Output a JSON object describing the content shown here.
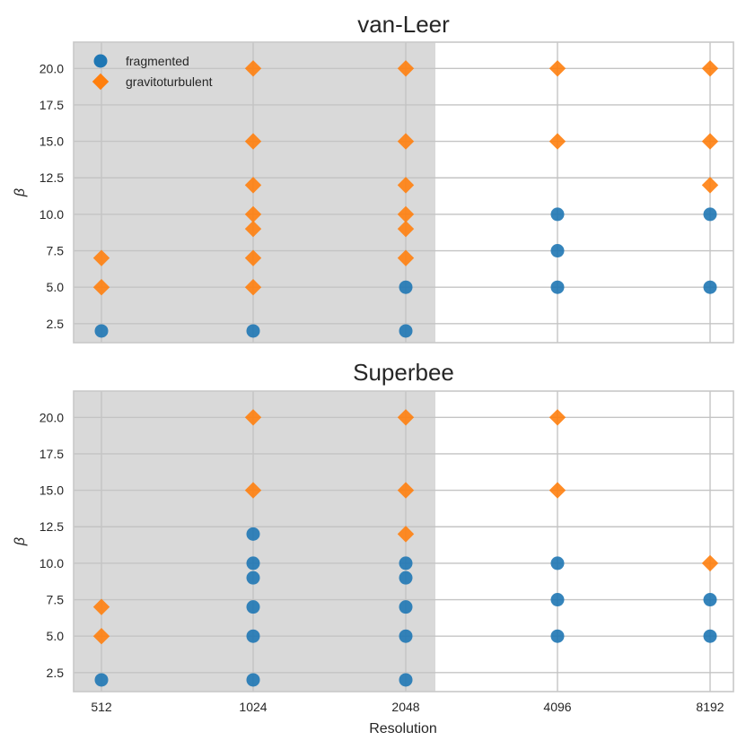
{
  "chart_data": [
    {
      "type": "scatter",
      "title": "van-Leer",
      "xlabel": "",
      "ylabel": "β",
      "x_categories": [
        "512",
        "1024",
        "2048",
        "4096",
        "8192"
      ],
      "ylim": [
        1.2,
        21.8
      ],
      "yticks": [
        "2.5",
        "5.0",
        "7.5",
        "10.0",
        "12.5",
        "15.0",
        "17.5",
        "20.0"
      ],
      "shaded_region": {
        "from_category": "512",
        "to_category_between": [
          "2048",
          "4096"
        ],
        "color": "#d9d9d9"
      },
      "series": [
        {
          "name": "fragmented",
          "color": "#1f77b4",
          "marker": "circle",
          "points": [
            {
              "x": "512",
              "y": 2.0
            },
            {
              "x": "1024",
              "y": 2.0
            },
            {
              "x": "2048",
              "y": 2.0
            },
            {
              "x": "2048",
              "y": 5.0
            },
            {
              "x": "4096",
              "y": 5.0
            },
            {
              "x": "4096",
              "y": 7.5
            },
            {
              "x": "4096",
              "y": 10.0
            },
            {
              "x": "8192",
              "y": 5.0
            },
            {
              "x": "8192",
              "y": 10.0
            }
          ]
        },
        {
          "name": "gravitoturbulent",
          "color": "#ff7f0e",
          "marker": "diamond",
          "points": [
            {
              "x": "512",
              "y": 5.0
            },
            {
              "x": "512",
              "y": 7.0
            },
            {
              "x": "1024",
              "y": 5.0
            },
            {
              "x": "1024",
              "y": 7.0
            },
            {
              "x": "1024",
              "y": 9.0
            },
            {
              "x": "1024",
              "y": 10.0
            },
            {
              "x": "1024",
              "y": 12.0
            },
            {
              "x": "1024",
              "y": 15.0
            },
            {
              "x": "1024",
              "y": 20.0
            },
            {
              "x": "2048",
              "y": 7.0
            },
            {
              "x": "2048",
              "y": 9.0
            },
            {
              "x": "2048",
              "y": 10.0
            },
            {
              "x": "2048",
              "y": 12.0
            },
            {
              "x": "2048",
              "y": 15.0
            },
            {
              "x": "2048",
              "y": 20.0
            },
            {
              "x": "4096",
              "y": 15.0
            },
            {
              "x": "4096",
              "y": 20.0
            },
            {
              "x": "8192",
              "y": 12.0
            },
            {
              "x": "8192",
              "y": 15.0
            },
            {
              "x": "8192",
              "y": 20.0
            }
          ]
        }
      ],
      "legend": {
        "placement": "top-left",
        "entries": [
          "fragmented",
          "gravitoturbulent"
        ]
      }
    },
    {
      "type": "scatter",
      "title": "Superbee",
      "xlabel": "Resolution",
      "ylabel": "β",
      "x_categories": [
        "512",
        "1024",
        "2048",
        "4096",
        "8192"
      ],
      "ylim": [
        1.2,
        21.8
      ],
      "yticks": [
        "2.5",
        "5.0",
        "7.5",
        "10.0",
        "12.5",
        "15.0",
        "17.5",
        "20.0"
      ],
      "shaded_region": {
        "from_category": "512",
        "to_category_between": [
          "2048",
          "4096"
        ],
        "color": "#d9d9d9"
      },
      "series": [
        {
          "name": "fragmented",
          "color": "#1f77b4",
          "marker": "circle",
          "points": [
            {
              "x": "512",
              "y": 2.0
            },
            {
              "x": "1024",
              "y": 2.0
            },
            {
              "x": "1024",
              "y": 5.0
            },
            {
              "x": "1024",
              "y": 7.0
            },
            {
              "x": "1024",
              "y": 9.0
            },
            {
              "x": "1024",
              "y": 10.0
            },
            {
              "x": "1024",
              "y": 12.0
            },
            {
              "x": "2048",
              "y": 2.0
            },
            {
              "x": "2048",
              "y": 5.0
            },
            {
              "x": "2048",
              "y": 7.0
            },
            {
              "x": "2048",
              "y": 9.0
            },
            {
              "x": "2048",
              "y": 10.0
            },
            {
              "x": "4096",
              "y": 5.0
            },
            {
              "x": "4096",
              "y": 7.5
            },
            {
              "x": "4096",
              "y": 10.0
            },
            {
              "x": "8192",
              "y": 5.0
            },
            {
              "x": "8192",
              "y": 7.5
            }
          ]
        },
        {
          "name": "gravitoturbulent",
          "color": "#ff7f0e",
          "marker": "diamond",
          "points": [
            {
              "x": "512",
              "y": 5.0
            },
            {
              "x": "512",
              "y": 7.0
            },
            {
              "x": "1024",
              "y": 15.0
            },
            {
              "x": "1024",
              "y": 20.0
            },
            {
              "x": "2048",
              "y": 12.0
            },
            {
              "x": "2048",
              "y": 15.0
            },
            {
              "x": "2048",
              "y": 20.0
            },
            {
              "x": "4096",
              "y": 15.0
            },
            {
              "x": "4096",
              "y": 20.0
            },
            {
              "x": "8192",
              "y": 10.0
            }
          ]
        }
      ]
    }
  ]
}
